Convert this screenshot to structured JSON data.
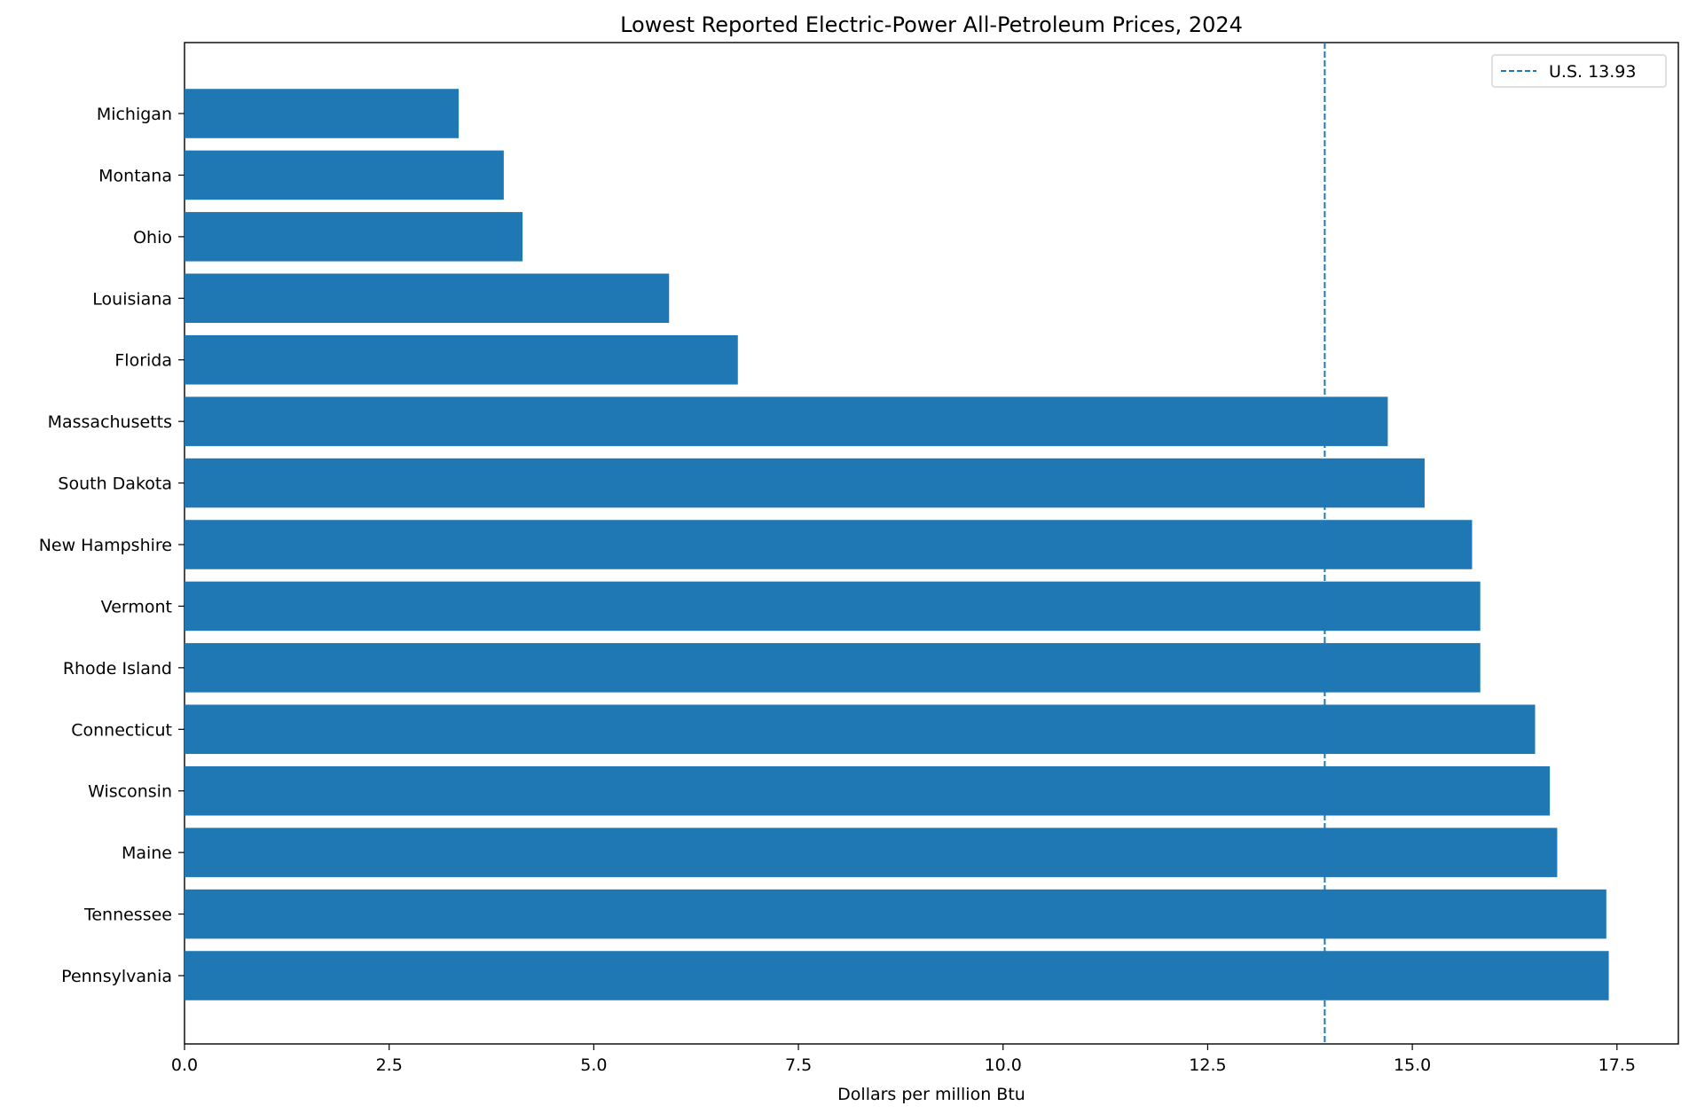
{
  "chart_data": {
    "type": "bar",
    "orientation": "horizontal",
    "title": "Lowest Reported Electric-Power All-Petroleum Prices, 2024",
    "xlabel": "Dollars per million Btu",
    "ylabel": "",
    "xlim": [
      0,
      18.25
    ],
    "x_ticks": [
      0.0,
      2.5,
      5.0,
      7.5,
      10.0,
      12.5,
      15.0,
      17.5
    ],
    "x_tick_labels": [
      "0.0",
      "2.5",
      "5.0",
      "7.5",
      "10.0",
      "12.5",
      "15.0",
      "17.5"
    ],
    "grid": false,
    "legend_position": "top-right",
    "categories": [
      "Michigan",
      "Montana",
      "Ohio",
      "Louisiana",
      "Florida",
      "Massachusetts",
      "South Dakota",
      "New Hampshire",
      "Vermont",
      "Rhode Island",
      "Connecticut",
      "Wisconsin",
      "Maine",
      "Tennessee",
      "Pennsylvania"
    ],
    "values": [
      3.35,
      3.9,
      4.13,
      5.92,
      6.76,
      14.7,
      15.15,
      15.73,
      15.83,
      15.83,
      16.5,
      16.68,
      16.77,
      17.37,
      17.4
    ],
    "bar_color": "#1f77b4",
    "reference_line": {
      "value": 13.93,
      "label": "U.S. 13.93",
      "style": "dashed",
      "color": "#1f77b4"
    }
  }
}
